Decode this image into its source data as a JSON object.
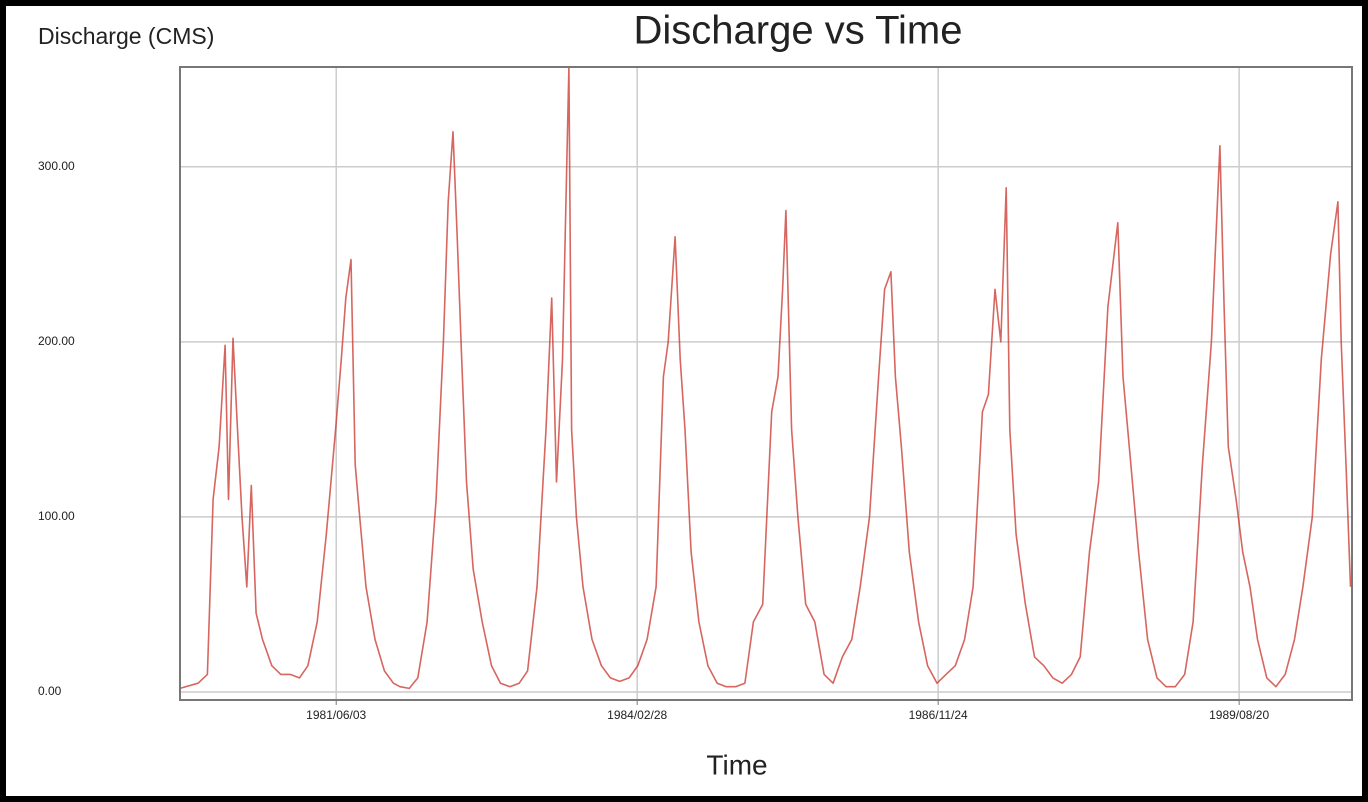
{
  "chart_data": {
    "type": "line",
    "title": "Discharge vs Time",
    "ylabel": "Discharge (CMS)",
    "xlabel": "Time",
    "color": "#c8332a",
    "grid": true,
    "xlim": [
      "1980/01/01",
      "1990/08/30"
    ],
    "xticks": [
      "1981/06/03",
      "1984/02/28",
      "1986/11/24",
      "1989/08/20"
    ],
    "ylim": [
      -4.6,
      357
    ],
    "yticks": [
      {
        "value": 0,
        "label": "0.00"
      },
      {
        "value": 100,
        "label": "100.00"
      },
      {
        "value": 200,
        "label": "200.00"
      },
      {
        "value": 300,
        "label": "300.00"
      }
    ],
    "x": [
      "1980/01/01",
      "1980/03/01",
      "1980/04/01",
      "1980/04/20",
      "1980/05/10",
      "1980/05/30",
      "1980/06/10",
      "1980/06/25",
      "1980/07/10",
      "1980/07/25",
      "1980/08/10",
      "1980/08/25",
      "1980/09/10",
      "1980/10/01",
      "1980/11/01",
      "1980/12/01",
      "1981/01/01",
      "1981/02/01",
      "1981/03/01",
      "1981/04/01",
      "1981/05/01",
      "1981/06/01",
      "1981/06/20",
      "1981/07/05",
      "1981/07/22",
      "1981/08/05",
      "1981/08/20",
      "1981/09/10",
      "1981/10/10",
      "1981/11/10",
      "1981/12/10",
      "1982/01/01",
      "1982/02/01",
      "1982/03/01",
      "1982/04/01",
      "1982/05/01",
      "1982/05/25",
      "1982/06/10",
      "1982/06/26",
      "1982/07/10",
      "1982/07/25",
      "1982/08/10",
      "1982/09/01",
      "1982/10/01",
      "1982/11/01",
      "1982/12/01",
      "1983/01/01",
      "1983/02/01",
      "1983/03/01",
      "1983/04/01",
      "1983/05/01",
      "1983/05/20",
      "1983/06/05",
      "1983/06/25",
      "1983/07/16",
      "1983/07/25",
      "1983/08/10",
      "1983/09/01",
      "1983/10/01",
      "1983/11/01",
      "1983/12/01",
      "1984/01/01",
      "1984/02/01",
      "1984/03/01",
      "1984/04/01",
      "1984/05/01",
      "1984/05/25",
      "1984/06/10",
      "1984/07/03",
      "1984/07/20",
      "1984/08/05",
      "1984/08/25",
      "1984/09/20",
      "1984/10/20",
      "1984/11/20",
      "1984/12/20",
      "1985/01/20",
      "1985/02/20",
      "1985/03/20",
      "1985/04/20",
      "1985/05/20",
      "1985/06/10",
      "1985/06/25",
      "1985/07/06",
      "1985/07/25",
      "1985/08/15",
      "1985/09/10",
      "1985/10/10",
      "1985/11/10",
      "1985/12/10",
      "1986/01/10",
      "1986/02/10",
      "1986/03/10",
      "1986/04/10",
      "1986/05/10",
      "1986/05/30",
      "1986/06/20",
      "1986/07/05",
      "1986/07/25",
      "1986/08/20",
      "1986/09/20",
      "1986/10/20",
      "1986/11/20",
      "1986/12/20",
      "1987/01/20",
      "1987/02/20",
      "1987/03/20",
      "1987/04/20",
      "1987/05/10",
      "1987/06/01",
      "1987/06/20",
      "1987/07/08",
      "1987/07/20",
      "1987/08/10",
      "1987/09/10",
      "1987/10/10",
      "1987/11/10",
      "1987/12/10",
      "1988/01/10",
      "1988/02/10",
      "1988/03/10",
      "1988/04/10",
      "1988/05/10",
      "1988/06/10",
      "1988/07/13",
      "1988/07/30",
      "1988/08/20",
      "1988/09/20",
      "1988/10/20",
      "1988/11/20",
      "1988/12/20",
      "1989/01/20",
      "1989/02/20",
      "1989/03/20",
      "1989/04/20",
      "1989/05/20",
      "1989/06/17",
      "1989/07/01",
      "1989/07/15",
      "1989/08/10",
      "1989/09/01",
      "1989/09/25",
      "1989/10/20",
      "1989/11/20",
      "1989/12/20",
      "1990/01/20",
      "1990/02/20",
      "1990/03/20",
      "1990/04/20",
      "1990/05/20",
      "1990/06/20",
      "1990/07/14",
      "1990/07/25",
      "1990/08/10",
      "1990/08/25"
    ],
    "values": [
      2,
      5,
      10,
      110,
      140,
      198,
      110,
      202,
      150,
      100,
      60,
      118,
      45,
      30,
      15,
      10,
      10,
      8,
      15,
      40,
      90,
      150,
      190,
      225,
      247,
      130,
      100,
      60,
      30,
      12,
      5,
      3,
      2,
      8,
      40,
      110,
      200,
      280,
      320,
      260,
      190,
      120,
      70,
      40,
      15,
      5,
      3,
      5,
      12,
      60,
      150,
      225,
      120,
      190,
      357,
      150,
      100,
      60,
      30,
      15,
      8,
      6,
      8,
      15,
      30,
      60,
      180,
      200,
      260,
      190,
      150,
      80,
      40,
      15,
      5,
      3,
      3,
      5,
      40,
      50,
      160,
      180,
      230,
      275,
      150,
      100,
      50,
      40,
      10,
      5,
      20,
      30,
      60,
      100,
      180,
      230,
      240,
      180,
      140,
      80,
      40,
      15,
      5,
      10,
      15,
      30,
      60,
      160,
      170,
      230,
      200,
      288,
      150,
      90,
      50,
      20,
      15,
      8,
      5,
      10,
      20,
      80,
      120,
      220,
      268,
      180,
      140,
      80,
      30,
      8,
      3,
      3,
      10,
      40,
      130,
      200,
      312,
      220,
      140,
      110,
      80,
      60,
      30,
      8,
      3,
      10,
      30,
      60,
      100,
      190,
      250,
      280,
      200,
      130,
      60
    ]
  }
}
